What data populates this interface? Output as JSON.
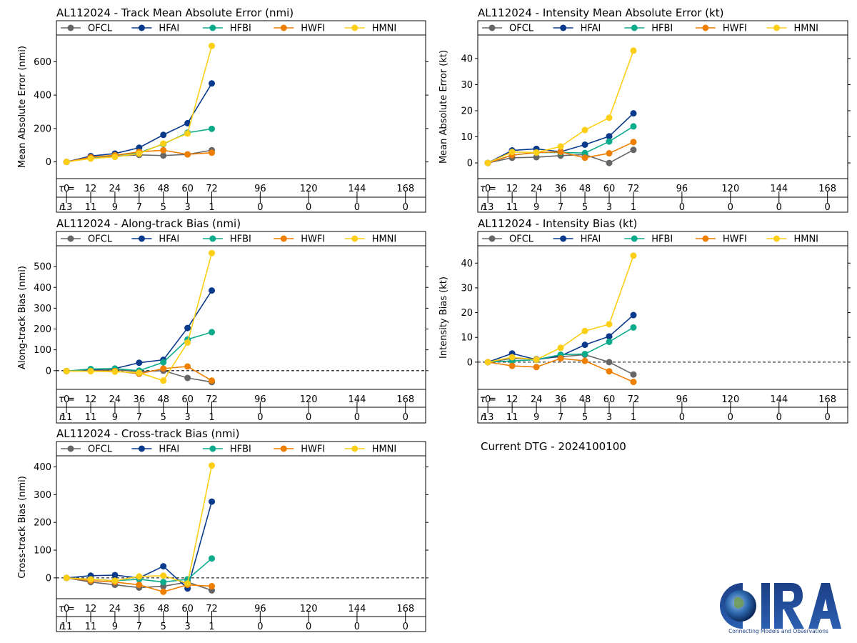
{
  "series_names": [
    "OFCL",
    "HFAI",
    "HFBI",
    "HWFI",
    "HMNI"
  ],
  "colors": {
    "OFCL": "#666666",
    "HFAI": "#0a3a8c",
    "HFBI": "#0cab8c",
    "HWFI": "#ee7f00",
    "HMNI": "#fccf16"
  },
  "tau_label": "τ =",
  "n_label": "n",
  "taus": [
    0,
    12,
    24,
    36,
    48,
    60,
    72,
    96,
    120,
    144,
    168
  ],
  "dtg_text": "Current DTG - 2024100100",
  "logo": {
    "text": "CIRA",
    "tagline": "Connecting Models and Observations"
  },
  "chart_data": [
    {
      "type": "line",
      "title": "AL112024 - Track Mean Absolute Error (nmi)",
      "ylabel": "Mean Absolute Error (nmi)",
      "ylim": [
        -100,
        760
      ],
      "yticks": [
        0,
        200,
        400,
        600
      ],
      "zero_line": "solid",
      "n": [
        13,
        11,
        9,
        7,
        5,
        3,
        1,
        0,
        0,
        0,
        0
      ],
      "x": [
        0,
        12,
        24,
        36,
        48,
        60,
        72
      ],
      "series": [
        {
          "name": "OFCL",
          "values": [
            0,
            25,
            35,
            42,
            38,
            45,
            70
          ]
        },
        {
          "name": "HFAI",
          "values": [
            0,
            35,
            50,
            85,
            162,
            232,
            470
          ]
        },
        {
          "name": "HFBI",
          "values": [
            0,
            25,
            40,
            55,
            107,
            175,
            198
          ]
        },
        {
          "name": "HWFI",
          "values": [
            0,
            28,
            40,
            60,
            70,
            45,
            55
          ]
        },
        {
          "name": "HMNI",
          "values": [
            0,
            20,
            30,
            50,
            110,
            170,
            695
          ]
        }
      ]
    },
    {
      "type": "line",
      "title": "AL112024 - Intensity Mean Absolute Error (kt)",
      "ylabel": "Mean Absolute Error (kt)",
      "ylim": [
        -6,
        49
      ],
      "yticks": [
        0,
        10,
        20,
        30,
        40
      ],
      "zero_line": "solid",
      "n": [
        13,
        11,
        9,
        7,
        5,
        3,
        1,
        0,
        0,
        0,
        0
      ],
      "x": [
        0,
        12,
        24,
        36,
        48,
        60,
        72
      ],
      "series": [
        {
          "name": "OFCL",
          "values": [
            0,
            2,
            2.2,
            2.8,
            3.2,
            0,
            5
          ]
        },
        {
          "name": "HFAI",
          "values": [
            0,
            4.8,
            5.4,
            4.3,
            7,
            10.2,
            19
          ]
        },
        {
          "name": "HFBI",
          "values": [
            0,
            3,
            4,
            4,
            3.8,
            8.2,
            14
          ]
        },
        {
          "name": "HWFI",
          "values": [
            0,
            3,
            4,
            4.2,
            2,
            3.7,
            8
          ]
        },
        {
          "name": "HMNI",
          "values": [
            0,
            4.2,
            4,
            6.3,
            12.6,
            17.3,
            43
          ]
        }
      ]
    },
    {
      "type": "line",
      "title": "AL112024 - Along-track Bias (nmi)",
      "ylabel": "Along-track Bias (nmi)",
      "ylim": [
        -90,
        600
      ],
      "yticks": [
        0,
        100,
        200,
        300,
        400,
        500
      ],
      "zero_line": "dashed",
      "n": [
        11,
        11,
        9,
        7,
        5,
        3,
        1,
        0,
        0,
        0,
        0
      ],
      "x": [
        0,
        12,
        24,
        36,
        48,
        60,
        72
      ],
      "series": [
        {
          "name": "OFCL",
          "values": [
            -2,
            0,
            5,
            -5,
            0,
            -35,
            -55
          ]
        },
        {
          "name": "HFAI",
          "values": [
            -2,
            5,
            10,
            38,
            52,
            205,
            385
          ]
        },
        {
          "name": "HFBI",
          "values": [
            -2,
            8,
            10,
            0,
            40,
            150,
            185
          ]
        },
        {
          "name": "HWFI",
          "values": [
            -2,
            -2,
            -2,
            -15,
            10,
            20,
            -48
          ]
        },
        {
          "name": "HMNI",
          "values": [
            -2,
            -3,
            -5,
            -10,
            -48,
            135,
            565
          ]
        }
      ]
    },
    {
      "type": "line",
      "title": "AL112024 - Intensity Bias (kt)",
      "ylabel": "Intensity Bias (kt)",
      "ylim": [
        -11,
        47
      ],
      "yticks": [
        0,
        10,
        20,
        30,
        40
      ],
      "zero_line": "dashed",
      "n": [
        13,
        11,
        9,
        7,
        5,
        3,
        1,
        0,
        0,
        0,
        0
      ],
      "x": [
        0,
        12,
        24,
        36,
        48,
        60,
        72
      ],
      "series": [
        {
          "name": "OFCL",
          "values": [
            0,
            1.5,
            1.2,
            2.2,
            3,
            0,
            -5
          ]
        },
        {
          "name": "HFAI",
          "values": [
            0,
            3.5,
            1,
            2.5,
            7,
            10.4,
            19
          ]
        },
        {
          "name": "HFBI",
          "values": [
            0,
            0.5,
            1,
            3,
            3.3,
            8.2,
            14
          ]
        },
        {
          "name": "HWFI",
          "values": [
            0,
            -1.5,
            -2,
            1.5,
            0.5,
            -3.7,
            -8
          ]
        },
        {
          "name": "HMNI",
          "values": [
            0,
            2,
            1,
            5.8,
            12.6,
            15.3,
            43
          ]
        }
      ]
    },
    {
      "type": "line",
      "title": "AL112024 - Cross-track Bias (nmi)",
      "ylabel": "Cross-track Bias (nmi)",
      "ylim": [
        -75,
        440
      ],
      "yticks": [
        0,
        100,
        200,
        300,
        400
      ],
      "zero_line": "dashed",
      "n": [
        11,
        11,
        9,
        7,
        5,
        3,
        1,
        0,
        0,
        0,
        0
      ],
      "x": [
        0,
        12,
        24,
        36,
        48,
        60,
        72
      ],
      "series": [
        {
          "name": "OFCL",
          "values": [
            0,
            -15,
            -25,
            -35,
            -30,
            -15,
            -45
          ]
        },
        {
          "name": "HFAI",
          "values": [
            0,
            8,
            10,
            0,
            42,
            -38,
            275
          ]
        },
        {
          "name": "HFBI",
          "values": [
            0,
            -5,
            -10,
            -5,
            -15,
            -5,
            70
          ]
        },
        {
          "name": "HWFI",
          "values": [
            0,
            -10,
            -15,
            -25,
            -50,
            -25,
            -30
          ]
        },
        {
          "name": "HMNI",
          "values": [
            0,
            -5,
            -10,
            5,
            8,
            -20,
            405
          ]
        }
      ]
    }
  ]
}
